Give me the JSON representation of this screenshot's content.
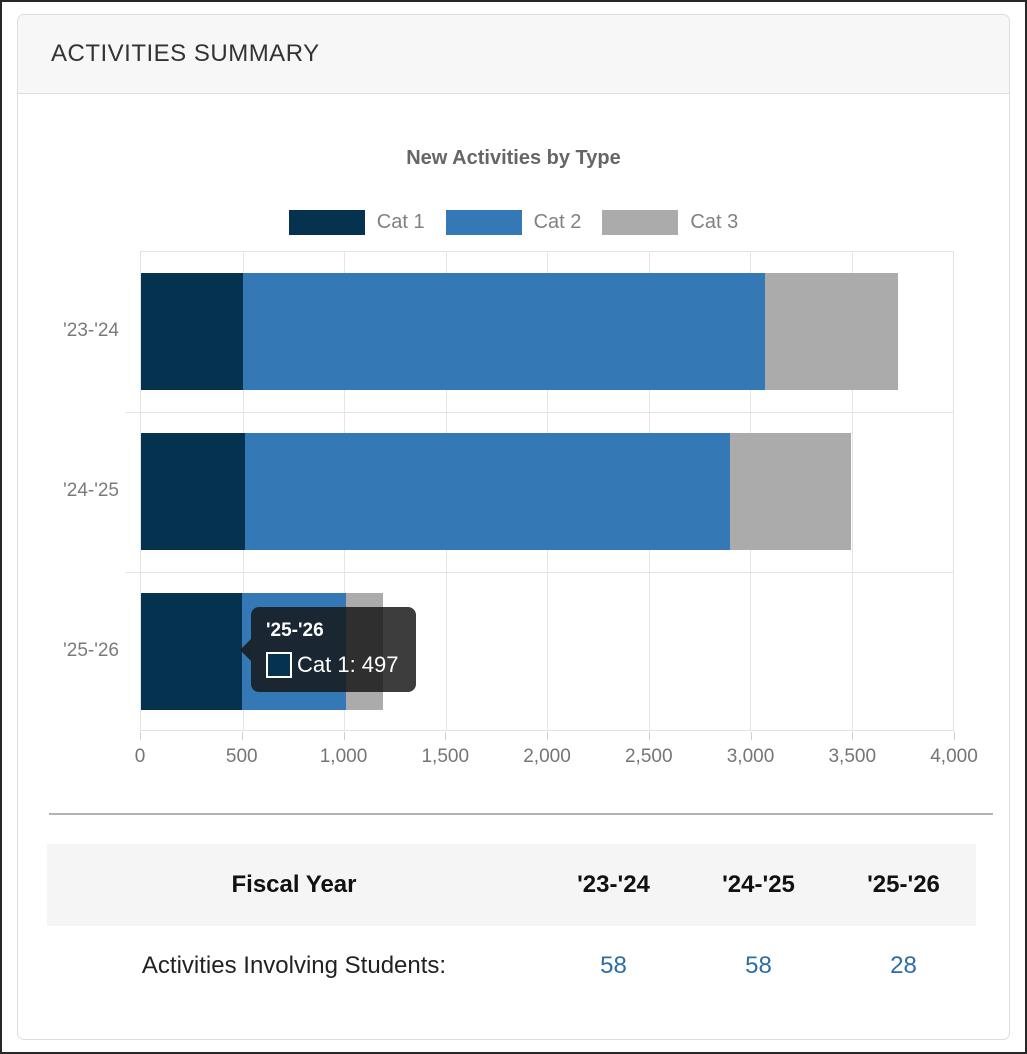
{
  "panel": {
    "title": "ACTIVITIES SUMMARY"
  },
  "chart_data": {
    "type": "bar",
    "orientation": "horizontal",
    "stacked": true,
    "title": "New Activities by Type",
    "categories": [
      "'23-'24",
      "'24-'25",
      "'25-'26"
    ],
    "series": [
      {
        "name": "Cat 1",
        "color": "#05334f",
        "values": [
          500,
          510,
          497
        ]
      },
      {
        "name": "Cat 2",
        "color": "#3478b5",
        "values": [
          2575,
          2390,
          513
        ]
      },
      {
        "name": "Cat 3",
        "color": "#ababab",
        "values": [
          655,
          600,
          180
        ]
      }
    ],
    "totals": [
      3730,
      3500,
      1190
    ],
    "xlabel": "",
    "ylabel": "",
    "xlim": [
      0,
      4000
    ],
    "x_ticks": [
      0,
      500,
      1000,
      1500,
      2000,
      2500,
      3000,
      3500,
      4000
    ],
    "x_tick_labels": [
      "0",
      "500",
      "1,000",
      "1,500",
      "2,000",
      "2,500",
      "3,000",
      "3,500",
      "4,000"
    ],
    "grid": true,
    "legend_position": "top"
  },
  "tooltip": {
    "title": "'25-'26",
    "series": "Cat 1",
    "value": "497",
    "text": "Cat 1: 497"
  },
  "table": {
    "header": [
      "Fiscal Year",
      "'23-'24",
      "'24-'25",
      "'25-'26"
    ],
    "rows": [
      {
        "label": "Activities Involving Students:",
        "values": [
          "58",
          "58",
          "28"
        ]
      }
    ]
  },
  "colors": {
    "cat1": "#05334f",
    "cat2": "#3478b5",
    "cat3": "#ababab",
    "link_value": "#2e6da4",
    "header_bg": "#f7f7f7",
    "panel_border": "#dddddd",
    "tooltip_bg": "rgba(22,22,22,0.83)"
  }
}
